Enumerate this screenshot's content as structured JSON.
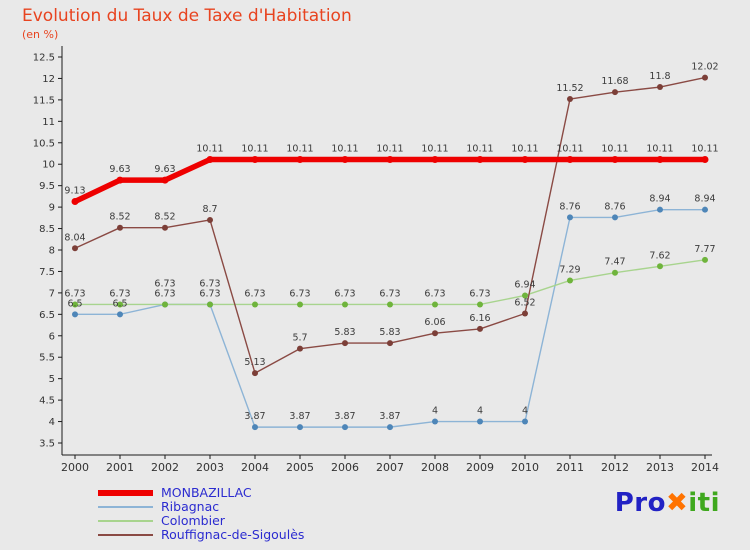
{
  "header": {
    "title": "Evolution du Taux de Taxe d'Habitation",
    "subtitle": "(en %)"
  },
  "chart_data": {
    "type": "line",
    "title": "Evolution du Taux de Taxe d'Habitation",
    "subtitle": "(en %)",
    "categories": [
      2000,
      2001,
      2002,
      2003,
      2004,
      2005,
      2006,
      2007,
      2008,
      2009,
      2010,
      2011,
      2012,
      2013,
      2014
    ],
    "ylim": [
      3.5,
      12.5
    ],
    "ytick_step": 0.5,
    "grid": false,
    "legend_position": "bottom-left",
    "axis_color": "#1a1a1a",
    "tick_label_color": "#333333",
    "value_label_color": "#3c3c3c",
    "series": [
      {
        "name": "MONBAZILLAC",
        "color": "#ee0000",
        "marker_color": "#ee0000",
        "line_width": 5.5,
        "values": [
          9.13,
          9.63,
          9.63,
          10.11,
          10.11,
          10.11,
          10.11,
          10.11,
          10.11,
          10.11,
          10.11,
          10.11,
          10.11,
          10.11,
          10.11
        ],
        "labels": [
          "9.13",
          "9.63",
          "9.63",
          "10.11",
          "10.11",
          "10.11",
          "10.11",
          "10.11",
          "10.11",
          "10.11",
          "10.11",
          "10.11",
          "10.11",
          "10.11",
          "10.11"
        ]
      },
      {
        "name": "Ribagnac",
        "color": "#8db4d6",
        "marker_color": "#4e86b8",
        "line_width": 1.4,
        "values": [
          6.5,
          6.5,
          6.73,
          6.73,
          3.87,
          3.87,
          3.87,
          3.87,
          4,
          4,
          4,
          8.76,
          8.76,
          8.94,
          8.94
        ],
        "labels": [
          "6.5",
          "6.5",
          "6.73",
          "6.73",
          "3.87",
          "3.87",
          "3.87",
          "3.87",
          "4",
          "4",
          "4",
          "8.76",
          "8.76",
          "8.94",
          "8.94"
        ]
      },
      {
        "name": "Colombier",
        "color": "#a8d48e",
        "marker_color": "#6fb43c",
        "line_width": 1.4,
        "values": [
          6.73,
          6.73,
          6.73,
          6.73,
          6.73,
          6.73,
          6.73,
          6.73,
          6.73,
          6.73,
          6.94,
          7.29,
          7.47,
          7.62,
          7.77
        ],
        "labels": [
          "6.73",
          "6.73",
          "6.73",
          "6.73",
          "6.73",
          "6.73",
          "6.73",
          "6.73",
          "6.73",
          "6.73",
          "6.94",
          "7.29",
          "7.47",
          "7.62",
          "7.77"
        ]
      },
      {
        "name": "Rouffignac-de-Sigoulès",
        "color": "#8a4a44",
        "marker_color": "#7c3f38",
        "line_width": 1.4,
        "values": [
          8.04,
          8.52,
          8.52,
          8.7,
          5.13,
          5.7,
          5.83,
          5.83,
          6.06,
          6.16,
          6.52,
          11.52,
          11.68,
          11.8,
          12.02
        ],
        "labels": [
          "8.04",
          "8.52",
          "8.52",
          "8.7",
          "5.13",
          "5.7",
          "5.83",
          "5.83",
          "6.06",
          "6.16",
          "6.52",
          "11.52",
          "11.68",
          "11.8",
          "12.02"
        ]
      }
    ]
  },
  "logo": {
    "pro": "Pro",
    "x": "✖",
    "iti": "iti"
  }
}
